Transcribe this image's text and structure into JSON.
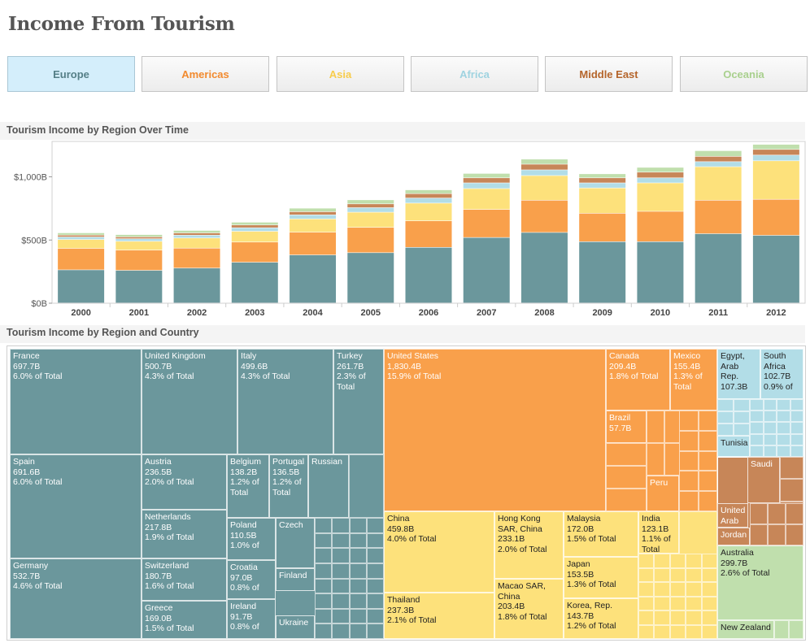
{
  "title": "Income From Tourism",
  "colors": {
    "Europe": "#6b979c",
    "Americas": "#f9a04b",
    "Asia": "#fde17b",
    "Africa": "#b2dde7",
    "Middle East": "#c78658",
    "Oceania": "#c0dfad"
  },
  "buttons": [
    {
      "label": "Europe",
      "color": "#557f87",
      "active": true
    },
    {
      "label": "Americas",
      "color": "#f28a2e",
      "active": false
    },
    {
      "label": "Asia",
      "color": "#f7cc4b",
      "active": false
    },
    {
      "label": "Africa",
      "color": "#9fd3e0",
      "active": false
    },
    {
      "label": "Middle East",
      "color": "#b5652b",
      "active": false
    },
    {
      "label": "Oceania",
      "color": "#a9d08e",
      "active": false
    }
  ],
  "bar_section_title": "Tourism Income by Region Over Time",
  "treemap_section_title": "Tourism Income by Region and Country",
  "chart_data": [
    {
      "type": "bar",
      "stacked": true,
      "title": "Tourism Income by Region Over Time",
      "categories": [
        "2000",
        "2001",
        "2002",
        "2003",
        "2004",
        "2005",
        "2006",
        "2007",
        "2008",
        "2009",
        "2010",
        "2011",
        "2012"
      ],
      "y_ticks": [
        {
          "value": 0,
          "label": "$0B"
        },
        {
          "value": 500,
          "label": "$500B"
        },
        {
          "value": 1000,
          "label": "$1,000B"
        }
      ],
      "ylim": [
        0,
        1280
      ],
      "series": [
        {
          "name": "Europe",
          "values": [
            262,
            258,
            276,
            322,
            380,
            398,
            440,
            518,
            558,
            485,
            485,
            548,
            535
          ]
        },
        {
          "name": "Americas",
          "values": [
            170,
            160,
            158,
            160,
            180,
            200,
            210,
            222,
            255,
            225,
            240,
            265,
            285
          ]
        },
        {
          "name": "Asia",
          "values": [
            70,
            70,
            80,
            85,
            105,
            120,
            140,
            165,
            195,
            200,
            225,
            265,
            305
          ]
        },
        {
          "name": "Africa",
          "values": [
            20,
            20,
            22,
            28,
            32,
            36,
            40,
            45,
            45,
            40,
            40,
            40,
            45
          ]
        },
        {
          "name": "Middle East",
          "values": [
            15,
            15,
            18,
            22,
            25,
            30,
            35,
            40,
            45,
            40,
            45,
            42,
            45
          ]
        },
        {
          "name": "Oceania",
          "values": [
            18,
            18,
            20,
            22,
            28,
            32,
            30,
            35,
            40,
            32,
            38,
            45,
            40
          ]
        }
      ]
    },
    {
      "type": "treemap",
      "title": "Tourism Income by Region and Country",
      "cells": [
        {
          "region": "Europe",
          "label": "France\n697.7B\n6.0% of Total",
          "name": "France",
          "value": 697.7
        },
        {
          "region": "Europe",
          "label": "Spain\n691.6B\n6.0% of Total",
          "name": "Spain",
          "value": 691.6
        },
        {
          "region": "Europe",
          "label": "Germany\n532.7B\n4.6% of Total",
          "name": "Germany",
          "value": 532.7
        },
        {
          "region": "Europe",
          "label": "United Kingdom\n500.7B\n4.3% of Total",
          "name": "United Kingdom",
          "value": 500.7
        },
        {
          "region": "Europe",
          "label": "Italy\n499.6B\n4.3% of Total",
          "name": "Italy",
          "value": 499.6
        },
        {
          "region": "Europe",
          "label": "Turkey\n261.7B\n2.3% of\nTotal",
          "name": "Turkey",
          "value": 261.7
        },
        {
          "region": "Europe",
          "label": "Austria\n236.5B\n2.0% of Total",
          "name": "Austria",
          "value": 236.5
        },
        {
          "region": "Europe",
          "label": "Netherlands\n217.8B\n1.9% of Total",
          "name": "Netherlands",
          "value": 217.8
        },
        {
          "region": "Europe",
          "label": "Switzerland\n180.7B\n1.6% of Total",
          "name": "Switzerland",
          "value": 180.7
        },
        {
          "region": "Europe",
          "label": "Greece\n169.0B\n1.5% of Total",
          "name": "Greece",
          "value": 169.0
        },
        {
          "region": "Europe",
          "label": "Belgium\n138.2B\n1.2% of\nTotal",
          "name": "Belgium",
          "value": 138.2
        },
        {
          "region": "Europe",
          "label": "Portugal\n136.5B\n1.2% of\nTotal",
          "name": "Portugal",
          "value": 136.5
        },
        {
          "region": "Europe",
          "label": "Russian",
          "name": "Russian",
          "value": 0
        },
        {
          "region": "Europe",
          "label": "Poland\n110.5B\n1.0% of",
          "name": "Poland",
          "value": 110.5
        },
        {
          "region": "Europe",
          "label": "Czech",
          "name": "Czech",
          "value": 0
        },
        {
          "region": "Europe",
          "label": "Croatia\n97.0B\n0.8% of",
          "name": "Croatia",
          "value": 97.0
        },
        {
          "region": "Europe",
          "label": "Finland",
          "name": "Finland",
          "value": 0
        },
        {
          "region": "Europe",
          "label": "Ireland\n91.7B\n0.8% of",
          "name": "Ireland",
          "value": 91.7
        },
        {
          "region": "Europe",
          "label": "Ukraine",
          "name": "Ukraine",
          "value": 0
        },
        {
          "region": "Americas",
          "label": "United States\n1,830.4B\n15.9% of Total",
          "name": "United States",
          "value": 1830.4
        },
        {
          "region": "Americas",
          "label": "Canada\n209.4B\n1.8% of Total",
          "name": "Canada",
          "value": 209.4
        },
        {
          "region": "Americas",
          "label": "Mexico\n155.4B\n1.3% of\nTotal",
          "name": "Mexico",
          "value": 155.4
        },
        {
          "region": "Americas",
          "label": "Brazil\n57.7B",
          "name": "Brazil",
          "value": 57.7
        },
        {
          "region": "Americas",
          "label": "Peru",
          "name": "Peru",
          "value": 0
        },
        {
          "region": "Asia",
          "label": "China\n459.8B\n4.0% of Total",
          "name": "China",
          "value": 459.8
        },
        {
          "region": "Asia",
          "label": "Thailand\n237.3B\n2.1% of Total",
          "name": "Thailand",
          "value": 237.3
        },
        {
          "region": "Asia",
          "label": "Hong Kong\nSAR, China\n233.1B\n2.0% of Total",
          "name": "Hong Kong SAR, China",
          "value": 233.1
        },
        {
          "region": "Asia",
          "label": "Macao SAR,\nChina\n203.4B\n1.8% of Total",
          "name": "Macao SAR, China",
          "value": 203.4
        },
        {
          "region": "Asia",
          "label": "Malaysia\n172.0B\n1.5% of Total",
          "name": "Malaysia",
          "value": 172.0
        },
        {
          "region": "Asia",
          "label": "Japan\n153.5B\n1.3% of Total",
          "name": "Japan",
          "value": 153.5
        },
        {
          "region": "Asia",
          "label": "Korea, Rep.\n143.7B\n1.2% of Total",
          "name": "Korea, Rep.",
          "value": 143.7
        },
        {
          "region": "Asia",
          "label": "India\n123.1B\n1.1% of\nTotal",
          "name": "India",
          "value": 123.1
        },
        {
          "region": "Africa",
          "label": "Egypt,\nArab\nRep.\n107.3B",
          "name": "Egypt, Arab Rep.",
          "value": 107.3
        },
        {
          "region": "Africa",
          "label": "South\nAfrica\n102.7B\n0.9% of",
          "name": "South Africa",
          "value": 102.7
        },
        {
          "region": "Africa",
          "label": "Tunisia",
          "name": "Tunisia",
          "value": 0
        },
        {
          "region": "Middle East",
          "label": "Saudi",
          "name": "Saudi",
          "value": 0
        },
        {
          "region": "Middle East",
          "label": "United\nArab",
          "name": "United Arab",
          "value": 0
        },
        {
          "region": "Middle East",
          "label": "Jordan",
          "name": "Jordan",
          "value": 0
        },
        {
          "region": "Oceania",
          "label": "Australia\n299.7B\n2.6% of Total",
          "name": "Australia",
          "value": 299.7
        },
        {
          "region": "Oceania",
          "label": "New Zealand",
          "name": "New Zealand",
          "value": 0
        }
      ]
    }
  ]
}
